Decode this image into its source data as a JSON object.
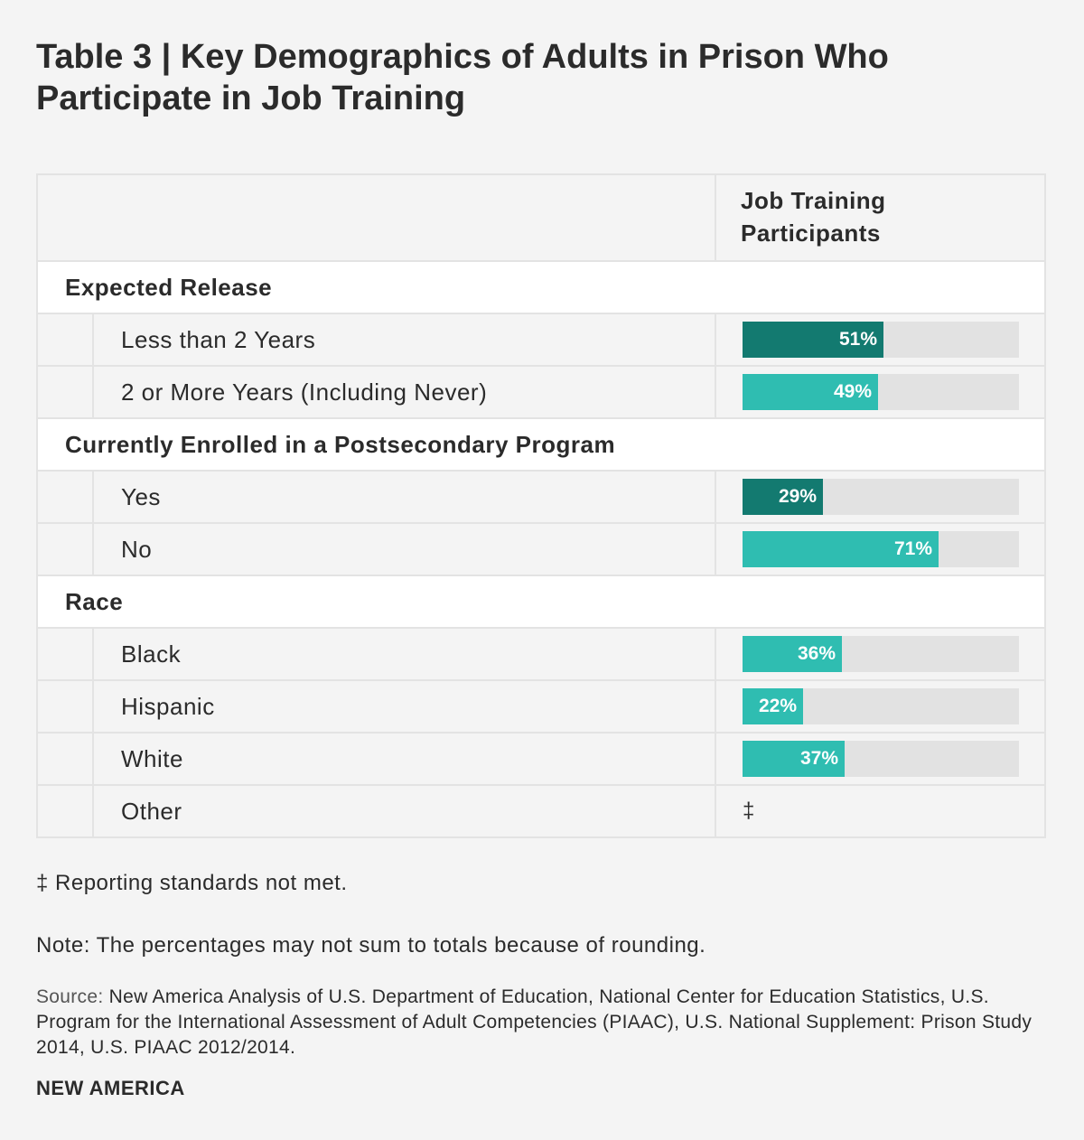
{
  "title": "Table 3 | Key Demographics of Adults in Prison Who Participate in Job Training",
  "column_header": "Job Training Participants",
  "colors": {
    "dark": "#137a70",
    "light": "#2fbdb1",
    "track": "#e2e2e2"
  },
  "chart_data": {
    "type": "bar",
    "title": "Key Demographics of Adults in Prison Who Participate in Job Training",
    "xlabel": "",
    "ylabel": "Job Training Participants",
    "ylim": [
      0,
      100
    ],
    "unit": "%",
    "groups": [
      {
        "name": "Expected Release",
        "items": [
          {
            "label": "Less than 2 Years",
            "value": 51,
            "display": "51%",
            "shade": "dark"
          },
          {
            "label": "2 or More Years (Including Never)",
            "value": 49,
            "display": "49%",
            "shade": "light"
          }
        ]
      },
      {
        "name": "Currently Enrolled in a Postsecondary Program",
        "items": [
          {
            "label": "Yes",
            "value": 29,
            "display": "29%",
            "shade": "dark"
          },
          {
            "label": "No",
            "value": 71,
            "display": "71%",
            "shade": "light"
          }
        ]
      },
      {
        "name": "Race",
        "items": [
          {
            "label": "Black",
            "value": 36,
            "display": "36%",
            "shade": "light"
          },
          {
            "label": "Hispanic",
            "value": 22,
            "display": "22%",
            "shade": "light"
          },
          {
            "label": "White",
            "value": 37,
            "display": "37%",
            "shade": "light"
          },
          {
            "label": "Other",
            "value": null,
            "display": "‡",
            "shade": "none"
          }
        ]
      }
    ]
  },
  "footnote": "‡ Reporting standards not met.",
  "note": "Note: The percentages may not sum to totals because of rounding.",
  "source_label": "Source:",
  "source_text": "New America Analysis of U.S. Department of Education, National Center for Education Statistics, U.S. Program for the International Assessment of Adult Competencies (PIAAC), U.S. National Supplement: Prison Study 2014, U.S. PIAAC 2012/2014.",
  "brand": "NEW AMERICA"
}
